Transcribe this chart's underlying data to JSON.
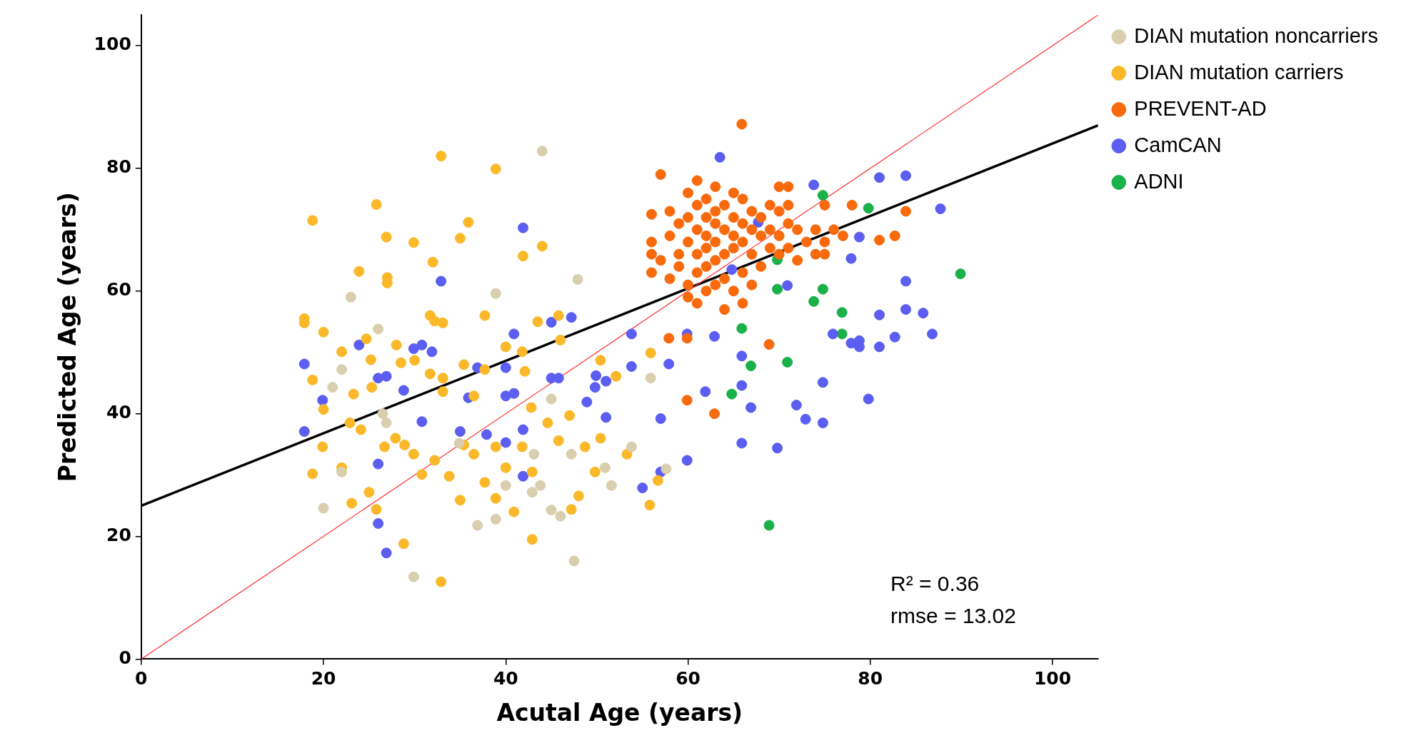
{
  "chart_data": {
    "type": "scatter",
    "xlabel": "Acutal Age (years)",
    "ylabel": "Predicted Age (years)",
    "xlim": [
      0,
      105
    ],
    "ylim": [
      0,
      105
    ],
    "xticks": [
      0,
      20,
      40,
      60,
      80,
      100
    ],
    "yticks": [
      0,
      20,
      40,
      60,
      80,
      100
    ],
    "legend": "top right",
    "marker": "circle",
    "annotations": [
      "R² = 0.36",
      "rmse = 13.02"
    ],
    "series": [
      {
        "name": "DIAN mutation noncarriers",
        "color": "#d9cfae",
        "x": [
          44,
          47.9,
          38.9,
          23,
          26,
          22,
          21,
          20,
          29.9,
          36.9,
          38.9,
          47.5,
          46,
          45,
          43.8,
          42.9,
          40,
          50.9,
          53.8,
          55.9,
          45,
          26.5,
          26.9,
          22,
          51.6,
          34.9,
          43.1,
          47.2,
          57.6
        ],
        "values": [
          82.8,
          61.9,
          59.6,
          59,
          53.8,
          47.2,
          44.3,
          24.6,
          13.4,
          21.8,
          22.8,
          16,
          23.3,
          24.3,
          28.3,
          27.2,
          28.3,
          31.2,
          34.6,
          45.8,
          42.4,
          40,
          38.5,
          30.5,
          28.3,
          35.2,
          33.4,
          33.4,
          31
        ]
      },
      {
        "name": "DIAN mutation carriers",
        "color": "#fbb829",
        "x": [
          18.8,
          17.9,
          17.9,
          20,
          23.9,
          25.8,
          26.9,
          27,
          27,
          29.9,
          32,
          32.9,
          35.9,
          35,
          38.9,
          44,
          41.9,
          31.7,
          32.2,
          33.1,
          37.7,
          18.8,
          22,
          24.7,
          25.2,
          28,
          28.5,
          30,
          31.7,
          33.1,
          35.4,
          37.7,
          40,
          41.8,
          42.1,
          45.8,
          46,
          50.4,
          52.1,
          20,
          22.9,
          24.1,
          26.7,
          27.9,
          28.9,
          29.9,
          30.8,
          32.2,
          33.8,
          35.4,
          36.5,
          37.7,
          38.9,
          40,
          41.8,
          42.9,
          44.6,
          45.8,
          48.7,
          49.8,
          19.9,
          18.8,
          22,
          23.1,
          25,
          25.8,
          28.8,
          32.9,
          35,
          38.9,
          40.9,
          42.9,
          47.2,
          48,
          55.8,
          56.7,
          50.4,
          53.3,
          47,
          42.8,
          36.5,
          33.1,
          23.3,
          25.3,
          43.5,
          55.9
        ],
        "values": [
          71.5,
          55.5,
          54.8,
          53.3,
          63.2,
          74.1,
          68.8,
          62.2,
          61.3,
          67.9,
          64.7,
          82,
          71.2,
          68.6,
          79.9,
          67.3,
          65.7,
          56,
          55.1,
          54.8,
          56,
          45.5,
          50.1,
          52.2,
          48.8,
          51.2,
          48.3,
          48.7,
          46.5,
          45.8,
          48,
          47.2,
          50.9,
          50.1,
          46.9,
          56,
          52,
          48.7,
          46.1,
          40.7,
          38.5,
          37.4,
          34.6,
          36,
          34.9,
          33.4,
          30.1,
          32.4,
          29.8,
          34.9,
          33.4,
          28.8,
          34.6,
          31.2,
          34.6,
          30.5,
          38.5,
          35.6,
          34.6,
          30.5,
          34.6,
          30.2,
          31.2,
          25.4,
          27.2,
          24.4,
          18.8,
          12.6,
          25.9,
          26.2,
          24,
          19.5,
          24.4,
          26.6,
          25.1,
          29.1,
          36,
          33.4,
          39.7,
          41,
          42.9,
          43.6,
          43.2,
          44.3,
          55,
          49.9
        ]
      },
      {
        "name": "PREVENT-AD",
        "color": "#f86a0c",
        "x": [
          65.9,
          57.9,
          59.9,
          59.9,
          62.9,
          68.9,
          83.9,
          82.7,
          81,
          57,
          58,
          56,
          56,
          56,
          56,
          57,
          58,
          58,
          59,
          59,
          59,
          60,
          60,
          60,
          60,
          60,
          61,
          61,
          61,
          61,
          61,
          61,
          62,
          62,
          62,
          62,
          62,
          62,
          63,
          63,
          63,
          63,
          63,
          63,
          64,
          64,
          64,
          64,
          64,
          65,
          65,
          65,
          65,
          65,
          66,
          66,
          66,
          66,
          66,
          67,
          67,
          67,
          67,
          68,
          68,
          68,
          69,
          69,
          69,
          70,
          70,
          70,
          70,
          71,
          71,
          71,
          71,
          72,
          72,
          73,
          74,
          74,
          75,
          75,
          75,
          76,
          77,
          78
        ],
        "values": [
          87.2,
          52.3,
          52.3,
          42.2,
          40,
          51.3,
          73,
          69,
          68.3,
          79,
          73,
          72.5,
          68,
          66,
          63,
          65,
          69,
          62,
          71,
          66,
          64,
          76,
          72,
          68,
          61,
          59,
          78,
          74,
          70,
          66,
          63,
          58,
          75,
          72,
          69,
          67,
          64,
          60,
          77,
          73,
          71,
          68,
          65,
          61,
          74,
          70,
          66,
          62,
          57,
          76,
          72,
          69,
          67,
          60,
          75,
          71,
          68,
          63,
          58,
          73,
          70,
          66,
          61,
          72,
          69,
          64,
          74,
          70,
          67,
          77,
          73,
          69,
          66,
          77,
          74,
          71,
          67,
          70,
          65,
          68,
          70,
          66,
          74,
          68,
          66,
          70,
          69,
          74
        ]
      },
      {
        "name": "CamCAN",
        "color": "#5b5ef0",
        "x": [
          63.5,
          83.9,
          81,
          87.7,
          73.8,
          32.9,
          41.9,
          83.9,
          77.9,
          78.8,
          17.9,
          23.9,
          19.9,
          17.9,
          26,
          26.9,
          28.8,
          29.9,
          30.8,
          31.9,
          30.8,
          36.9,
          35.9,
          35,
          37.9,
          40,
          40.9,
          40,
          40.9,
          41.9,
          40,
          41.9,
          45,
          45.8,
          45,
          47.2,
          48.9,
          49.8,
          51,
          51,
          49.9,
          53.8,
          53.8,
          55,
          57,
          57,
          57.9,
          59.9,
          59.9,
          61.9,
          62.9,
          65.9,
          65.9,
          65.9,
          66.9,
          69.8,
          70.9,
          71.9,
          72.9,
          74.8,
          74.8,
          75.9,
          77.9,
          78.8,
          78.8,
          79.8,
          81,
          81,
          82.7,
          83.9,
          85.8,
          86.8,
          26,
          26.9,
          26,
          64.8,
          67.7
        ],
        "values": [
          81.8,
          78.8,
          78.5,
          73.4,
          77.3,
          61.6,
          70.3,
          61.6,
          65.3,
          68.8,
          48.1,
          51.2,
          42.2,
          37.1,
          45.8,
          46.1,
          43.8,
          50.6,
          51.2,
          50.1,
          38.7,
          47.5,
          42.6,
          37.1,
          36.6,
          47.5,
          53,
          42.9,
          43.3,
          37.4,
          35.3,
          29.8,
          45.8,
          45.8,
          54.9,
          55.7,
          41.9,
          44.3,
          45.3,
          39.4,
          46.2,
          53,
          47.7,
          27.9,
          30.5,
          39.2,
          48.1,
          32.4,
          53,
          43.6,
          52.6,
          49.4,
          44.6,
          35.2,
          41,
          34.4,
          60.9,
          41.4,
          39.1,
          38.5,
          45.1,
          53,
          51.5,
          50.9,
          51.9,
          42.4,
          50.9,
          56.1,
          52.5,
          57,
          56.4,
          53,
          22.1,
          17.3,
          31.8,
          63.5,
          71.2
        ]
      },
      {
        "name": "ADNI",
        "color": "#1ab04a",
        "x": [
          74.8,
          79.8,
          89.9,
          69.8,
          74.8,
          73.8,
          76.9,
          65.9,
          76.9,
          70.9,
          66.9,
          64.8,
          68.9,
          69.8
        ],
        "values": [
          75.6,
          73.5,
          62.8,
          60.3,
          60.3,
          58.3,
          56.5,
          53.9,
          53,
          48.4,
          47.8,
          43.2,
          21.8,
          65.1
        ]
      },
      {
        "type": "line",
        "marker": "none",
        "color": "#ff2a2a",
        "x": [
          0,
          105
        ],
        "values": [
          0,
          105
        ]
      },
      {
        "type": "line",
        "marker": "none",
        "color": "#000000",
        "x": [
          0,
          105
        ],
        "values": [
          25,
          87
        ]
      }
    ]
  }
}
